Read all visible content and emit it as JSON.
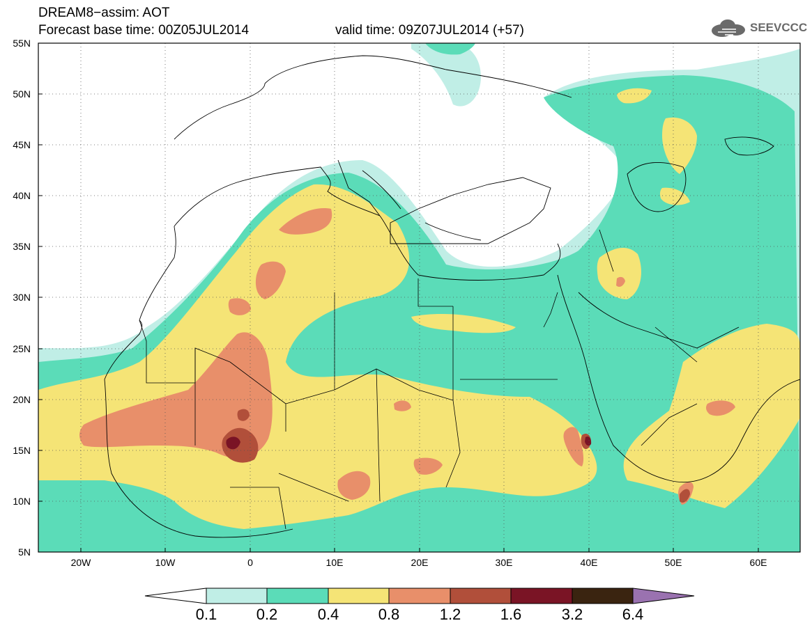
{
  "header": {
    "model_title": "DREAM8−assim: AOT",
    "forecast_base": "Forecast base time: 00Z05JUL2014",
    "valid_time": "valid time: 09Z07JUL2014 (+57)"
  },
  "logo": {
    "text": "SEEVCCC",
    "icon": "cloud-logo-icon"
  },
  "map": {
    "projection": "equirectangular",
    "lon_range": [
      -25,
      65
    ],
    "lat_range": [
      5,
      55
    ],
    "lat_ticks": [
      "55N",
      "50N",
      "45N",
      "40N",
      "35N",
      "30N",
      "25N",
      "20N",
      "15N",
      "10N",
      "5N"
    ],
    "lon_ticks": [
      "20W",
      "10W",
      "0",
      "10E",
      "20E",
      "30E",
      "40E",
      "50E",
      "60E"
    ],
    "gridlines": "dotted"
  },
  "colorbar": {
    "labels": [
      "0.1",
      "0.2",
      "0.4",
      "0.8",
      "1.2",
      "1.6",
      "3.2",
      "6.4"
    ],
    "colors": [
      "#c0eee6",
      "#5bdcb8",
      "#f5e476",
      "#e88f6a",
      "#b14f3a",
      "#7a1425",
      "#3a2410",
      "#9a72b0"
    ],
    "under_color": "#ffffff"
  },
  "fields": {
    "c01": "#c0eee6",
    "c02": "#5bdcb8",
    "c04": "#f5e476",
    "c08": "#e88f6a",
    "c12": "#b14f3a",
    "c16": "#7a1425"
  }
}
